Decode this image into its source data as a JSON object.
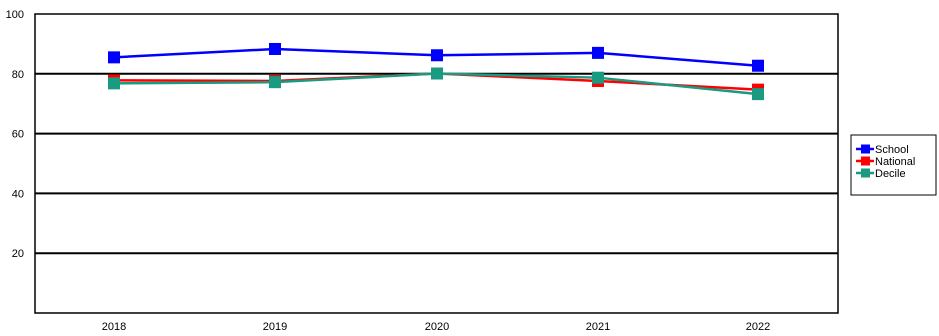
{
  "chart_data": {
    "type": "line",
    "categories": [
      "2018",
      "2019",
      "2020",
      "2021",
      "2022"
    ],
    "series": [
      {
        "name": "School",
        "color": "#0000ff",
        "values": [
          85.5,
          88.3,
          86.2,
          87.0,
          82.7
        ]
      },
      {
        "name": "National",
        "color": "#ff0000",
        "values": [
          77.8,
          77.6,
          80.1,
          77.6,
          74.7
        ]
      },
      {
        "name": "Decile",
        "color": "#1a9a80",
        "values": [
          76.8,
          77.2,
          80.1,
          78.7,
          73.2
        ]
      }
    ],
    "ylim": [
      0,
      100
    ],
    "yticks": [
      20,
      40,
      60,
      80,
      100
    ],
    "gridlines": [
      20,
      40,
      60,
      80
    ],
    "legend_position": "right",
    "title": "",
    "xlabel": "",
    "ylabel": ""
  }
}
